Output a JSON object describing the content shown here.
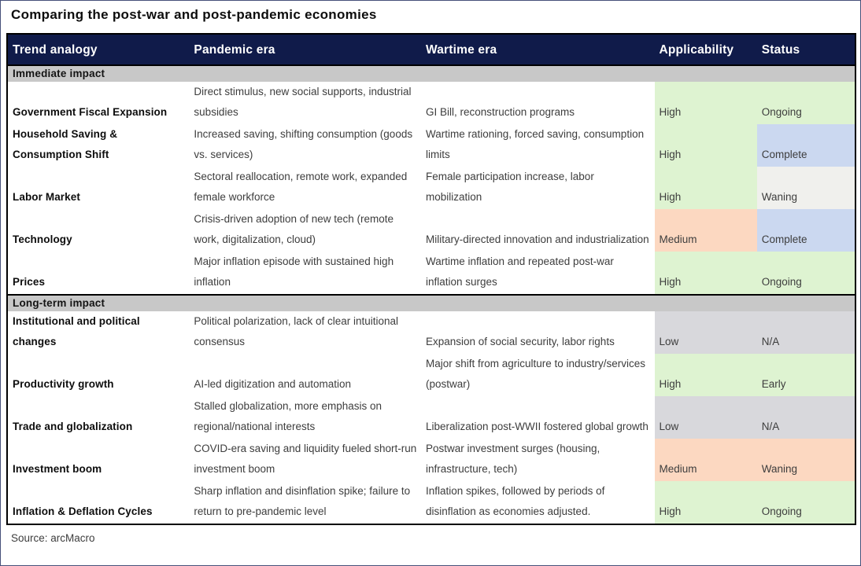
{
  "chart_data": {
    "type": "table",
    "title": "Comparing the post-war and post-pandemic economies",
    "source": "Source: arcMacro",
    "columns": [
      "Trend analogy",
      "Pandemic era",
      "Wartime era",
      "Applicability",
      "Status"
    ],
    "header_bg": "#101b4a",
    "section_bg": "#c8c8c8",
    "palette": {
      "green": "#def3d1",
      "peach": "#fcd8c1",
      "blue": "#cbd8f0",
      "gray": "#d8d8dc",
      "lightgray": "#f0f0ed"
    },
    "sections": [
      {
        "label": "Immediate impact",
        "rows": [
          {
            "trend": "Government Fiscal Expansion",
            "pandemic": "Direct stimulus, new social supports, industrial subsidies",
            "wartime": "GI Bill, reconstruction programs",
            "applicability": "High",
            "applicability_color": "green",
            "status": "Ongoing",
            "status_color": "green"
          },
          {
            "trend": "Household Saving & Consumption Shift",
            "pandemic": "Increased saving, shifting consumption (goods vs. services)",
            "wartime": "Wartime rationing, forced saving, consumption limits",
            "applicability": "High",
            "applicability_color": "green",
            "status": "Complete",
            "status_color": "blue"
          },
          {
            "trend": "Labor Market",
            "pandemic": "Sectoral reallocation, remote work, expanded female workforce",
            "wartime": "Female participation increase, labor mobilization",
            "applicability": "High",
            "applicability_color": "green",
            "status": "Waning",
            "status_color": "lightgray"
          },
          {
            "trend": "Technology",
            "pandemic": "Crisis-driven adoption of new tech (remote work, digitalization, cloud)",
            "wartime": "Military-directed innovation and industrialization",
            "applicability": "Medium",
            "applicability_color": "peach",
            "status": "Complete",
            "status_color": "blue"
          },
          {
            "trend": "Prices",
            "pandemic": "Major inflation episode with sustained high inflation",
            "wartime": "Wartime inflation and repeated post-war inflation surges",
            "applicability": "High",
            "applicability_color": "green",
            "status": "Ongoing",
            "status_color": "green"
          }
        ]
      },
      {
        "label": "Long-term impact",
        "rows": [
          {
            "trend": "Institutional and political changes",
            "pandemic": "Political polarization, lack of clear intuitional consensus",
            "wartime": "Expansion of social security, labor rights",
            "applicability": "Low",
            "applicability_color": "gray",
            "status": "N/A",
            "status_color": "gray"
          },
          {
            "trend": "Productivity growth",
            "pandemic": "AI-led digitization and automation",
            "wartime": "Major shift from agriculture to industry/services (postwar)",
            "applicability": "High",
            "applicability_color": "green",
            "status": "Early",
            "status_color": "green"
          },
          {
            "trend": "Trade and globalization",
            "pandemic": "Stalled globalization, more emphasis on regional/national interests",
            "wartime": "Liberalization post-WWII fostered global growth",
            "applicability": "Low",
            "applicability_color": "gray",
            "status": "N/A",
            "status_color": "gray"
          },
          {
            "trend": "Investment boom",
            "pandemic": "COVID-era saving and liquidity fueled short-run investment boom",
            "wartime": "Postwar investment surges (housing, infrastructure, tech)",
            "applicability": "Medium",
            "applicability_color": "peach",
            "status": "Waning",
            "status_color": "peach"
          },
          {
            "trend": "Inflation & Deflation Cycles",
            "pandemic": "Sharp inflation and disinflation spike; failure to return to pre-pandemic level",
            "wartime": "Inflation spikes, followed by periods of disinflation as economies adjusted.",
            "applicability": "High",
            "applicability_color": "green",
            "status": "Ongoing",
            "status_color": "green"
          }
        ]
      }
    ]
  }
}
